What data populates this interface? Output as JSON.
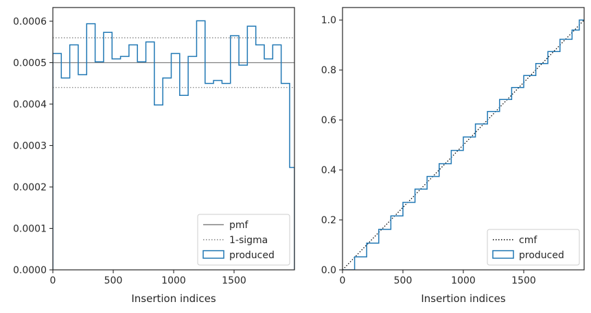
{
  "chart_data": [
    {
      "type": "step",
      "xlabel": "Insertion indices",
      "ylabel": "",
      "xlim": [
        0,
        2000
      ],
      "ylim": [
        0,
        0.000633
      ],
      "x_ticks": [
        0,
        500,
        1000,
        1500
      ],
      "x_tick_labels": [
        "0",
        "500",
        "1000",
        "1500"
      ],
      "y_ticks": [
        0,
        0.0001,
        0.0002,
        0.0003,
        0.0004,
        0.0005,
        0.0006
      ],
      "y_tick_labels": [
        "0.0000",
        "0.0001",
        "0.0002",
        "0.0003",
        "0.0004",
        "0.0005",
        "0.0006"
      ],
      "grid": false,
      "legend_position": "lower-right",
      "bin_edges": [
        0,
        70,
        140,
        210,
        280,
        350,
        420,
        490,
        560,
        630,
        700,
        770,
        840,
        910,
        980,
        1050,
        1120,
        1190,
        1260,
        1330,
        1400,
        1470,
        1540,
        1610,
        1680,
        1750,
        1820,
        1890,
        1960,
        2000
      ],
      "series": [
        {
          "name": "pmf",
          "kind": "hline",
          "value": 0.0005,
          "color": "#808080",
          "style": "solid"
        },
        {
          "name": "1-sigma",
          "kind": "hlines",
          "values": [
            0.00056,
            0.00044
          ],
          "color": "#808080",
          "style": "dotted"
        },
        {
          "name": "produced",
          "kind": "step",
          "color": "#1f77b4",
          "values": [
            0.000522,
            0.000463,
            0.000543,
            0.000471,
            0.000594,
            0.000502,
            0.000573,
            0.000509,
            0.000515,
            0.000543,
            0.000502,
            0.00055,
            0.000398,
            0.000463,
            0.000522,
            0.000421,
            0.000515,
            0.000601,
            0.00045,
            0.000457,
            0.00045,
            0.000565,
            0.000494,
            0.000588,
            0.000543,
            0.000509,
            0.000543,
            0.00045,
            0.000247
          ]
        }
      ]
    },
    {
      "type": "line",
      "xlabel": "Insertion indices",
      "ylabel": "",
      "xlim": [
        0,
        2000
      ],
      "ylim": [
        0,
        1.05
      ],
      "x_ticks": [
        0,
        500,
        1000,
        1500
      ],
      "x_tick_labels": [
        "0",
        "500",
        "1000",
        "1500"
      ],
      "y_ticks": [
        0,
        0.2,
        0.4,
        0.6,
        0.8,
        1.0
      ],
      "y_tick_labels": [
        "0.0",
        "0.2",
        "0.4",
        "0.6",
        "0.8",
        "1.0"
      ],
      "grid": false,
      "legend_position": "lower-right",
      "series": [
        {
          "name": "cmf",
          "kind": "line",
          "x": [
            0,
            2000
          ],
          "y": [
            0,
            1.0
          ],
          "color": "#000000",
          "style": "dotted"
        },
        {
          "name": "produced",
          "kind": "step",
          "color": "#1f77b4",
          "x": [
            0,
            100,
            200,
            300,
            400,
            500,
            600,
            700,
            800,
            900,
            1000,
            1100,
            1200,
            1300,
            1400,
            1500,
            1600,
            1700,
            1800,
            1900,
            1960,
            2000
          ],
          "y": [
            0.0,
            0.052,
            0.107,
            0.162,
            0.216,
            0.27,
            0.323,
            0.374,
            0.425,
            0.478,
            0.532,
            0.584,
            0.634,
            0.682,
            0.73,
            0.778,
            0.826,
            0.874,
            0.923,
            0.96,
            1.0,
            1.0
          ]
        }
      ]
    }
  ]
}
